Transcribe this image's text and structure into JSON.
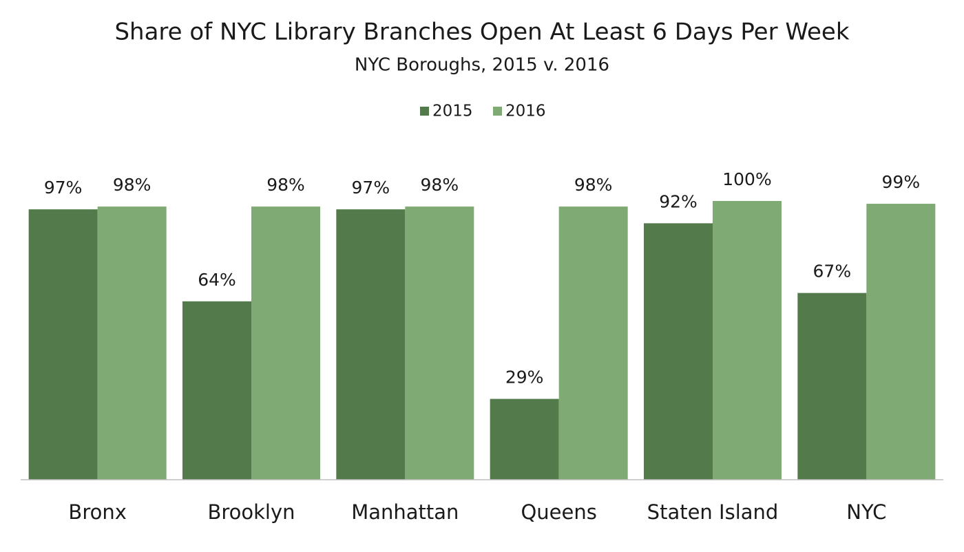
{
  "chart_data": {
    "type": "bar",
    "title": "Share of NYC Library Branches Open At Least 6 Days Per Week",
    "subtitle": "NYC Boroughs, 2015 v. 2016",
    "categories": [
      "Bronx",
      "Brooklyn",
      "Manhattan",
      "Queens",
      "Staten Island",
      "NYC"
    ],
    "series": [
      {
        "name": "2015",
        "color": "#537a4b",
        "values": [
          97,
          64,
          97,
          29,
          92,
          67
        ],
        "value_labels": [
          "97%",
          "64%",
          "97%",
          "29%",
          "92%",
          "67%"
        ]
      },
      {
        "name": "2016",
        "color": "#80aa74",
        "values": [
          98,
          98,
          98,
          98,
          100,
          99
        ],
        "value_labels": [
          "98%",
          "98%",
          "98%",
          "98%",
          "100%",
          "99%"
        ]
      }
    ],
    "legend": "top"
  }
}
